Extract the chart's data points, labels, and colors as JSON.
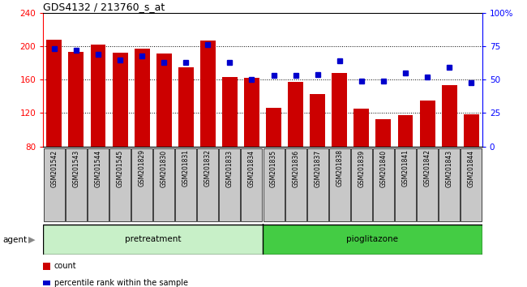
{
  "title": "GDS4132 / 213760_s_at",
  "samples": [
    "GSM201542",
    "GSM201543",
    "GSM201544",
    "GSM201545",
    "GSM201829",
    "GSM201830",
    "GSM201831",
    "GSM201832",
    "GSM201833",
    "GSM201834",
    "GSM201835",
    "GSM201836",
    "GSM201837",
    "GSM201838",
    "GSM201839",
    "GSM201840",
    "GSM201841",
    "GSM201842",
    "GSM201843",
    "GSM201844"
  ],
  "counts": [
    208,
    193,
    202,
    192,
    197,
    191,
    175,
    207,
    163,
    162,
    126,
    157,
    143,
    168,
    125,
    113,
    117,
    135,
    153,
    118
  ],
  "percentile": [
    73,
    72,
    69,
    65,
    68,
    63,
    63,
    76,
    63,
    50,
    53,
    53,
    54,
    64,
    49,
    49,
    55,
    52,
    59,
    48
  ],
  "bar_color": "#cc0000",
  "dot_color": "#0000cc",
  "ylim_left": [
    80,
    240
  ],
  "ylim_right": [
    0,
    100
  ],
  "yticks_left": [
    80,
    120,
    160,
    200,
    240
  ],
  "yticks_right": [
    0,
    25,
    50,
    75,
    100
  ],
  "yticklabels_right": [
    "0",
    "25",
    "50",
    "75",
    "100%"
  ],
  "pretreatment_count": 10,
  "pretreatment_label": "pretreatment",
  "pioglitazone_label": "pioglitazone",
  "agent_label": "agent",
  "legend_count": "count",
  "legend_percentile": "percentile rank within the sample",
  "bar_bottom": 80,
  "pretreatment_color": "#c8f0c8",
  "pioglitazone_color": "#44cc44",
  "tick_bg": "#c8c8c8"
}
